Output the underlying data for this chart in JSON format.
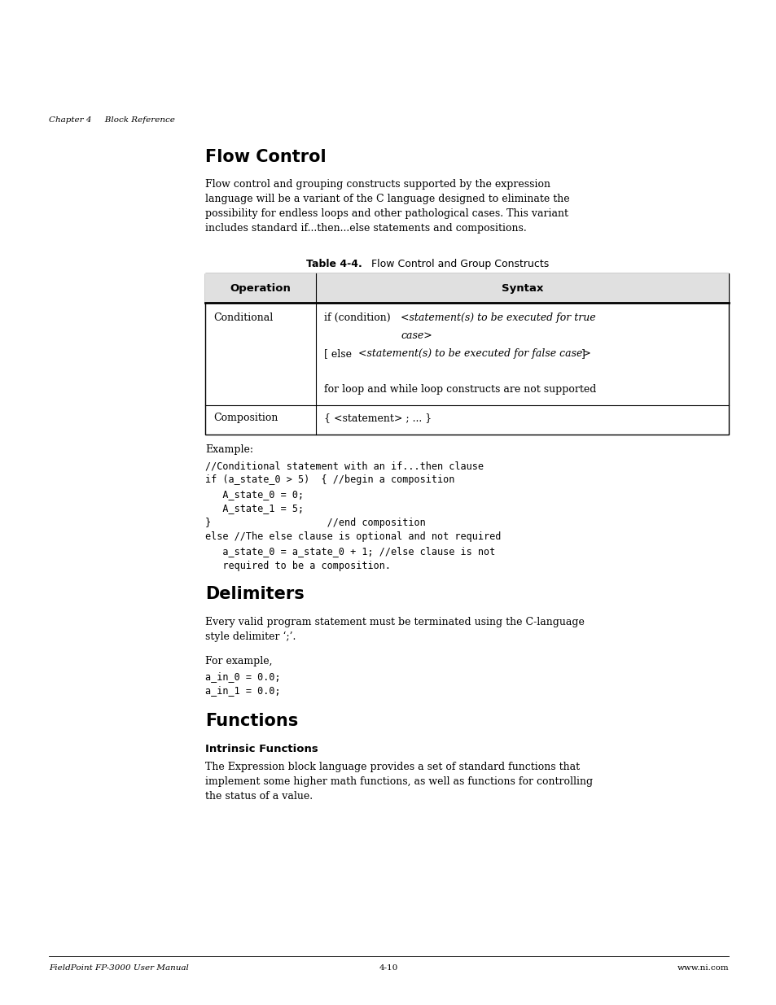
{
  "bg_color": "#ffffff",
  "page_width": 9.54,
  "page_height": 12.35,
  "header_text": "Chapter 4     Block Reference",
  "section1_title": "Flow Control",
  "section1_body": "Flow control and grouping constructs supported by the expression\nlanguage will be a variant of the C language designed to eliminate the\npossibility for endless loops and other pathological cases. This variant\nincludes standard if...then...else statements and compositions.",
  "table_title_bold": "Table 4-4.",
  "table_title_normal": "  Flow Control and Group Constructs",
  "table_col1_header": "Operation",
  "table_col2_header": "Syntax",
  "table_row1_col1": "Conditional",
  "table_row2_col1": "Composition",
  "table_row2_col2": "{ <statement> ; ... }",
  "example_label": "Example:",
  "code_block1_lines": [
    "//Conditional statement with an if...then clause",
    "if (a_state_0 > 5)  { //begin a composition",
    "   A_state_0 = 0;",
    "   A_state_1 = 5;",
    "}                    //end composition",
    "else //The else clause is optional and not required",
    "   a_state_0 = a_state_0 + 1; //else clause is not",
    "   required to be a composition."
  ],
  "section2_title": "Delimiters",
  "section2_body": "Every valid program statement must be terminated using the C-language\nstyle delimiter ‘;’.",
  "section2_example_label": "For example,",
  "code_block2_lines": [
    "a_in_0 = 0.0;",
    "a_in_1 = 0.0;"
  ],
  "section3_title": "Functions",
  "section3_sub": "Intrinsic Functions",
  "section3_body": "The Expression block language provides a set of standard functions that\nimplement some higher math functions, as well as functions for controlling\nthe status of a value.",
  "footer_left": "FieldPoint FP-3000 User Manual",
  "footer_center": "4-10",
  "footer_right": "www.ni.com"
}
